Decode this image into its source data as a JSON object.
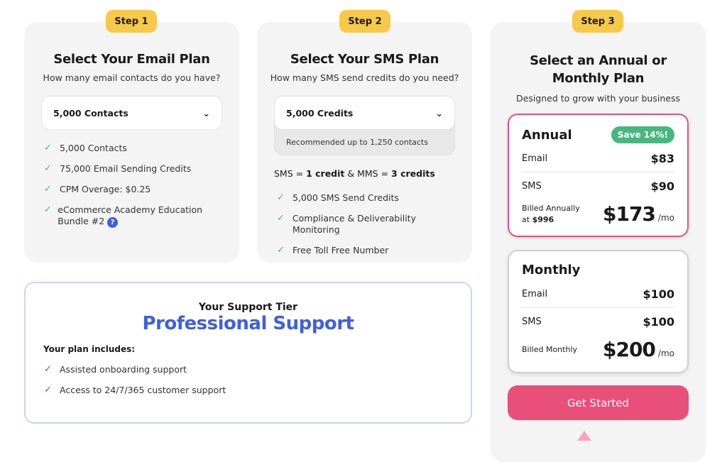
{
  "steps": [
    "Step 1",
    "Step 2",
    "Step 3"
  ],
  "email": {
    "title": "Select Your Email Plan",
    "subtitle": "How many email contacts do you have?",
    "selected": "5,000 Contacts",
    "features": [
      "5,000 Contacts",
      "75,000 Email Sending Credits",
      "CPM Overage: $0.25",
      "eCommerce Academy Education Bundle #2"
    ]
  },
  "sms": {
    "title": "Select Your SMS Plan",
    "subtitle": "How many SMS send credits do you need?",
    "selected": "5,000 Credits",
    "recommended": "Recommended up to 1,250 contacts",
    "ratio": {
      "sms": "SMS = ",
      "sms_val": "1 credit",
      "mms": " & MMS = ",
      "mms_val": "3 credits"
    },
    "features": [
      "5,000 SMS Send Credits",
      "Compliance & Deliverability Monitoring",
      "Free Toll Free Number"
    ]
  },
  "billing": {
    "title": "Select an Annual or Monthly Plan",
    "subtitle": "Designed to grow with your business",
    "annual": {
      "label": "Annual",
      "badge": "Save 14%!",
      "email_label": "Email",
      "email": "$83",
      "sms_label": "SMS",
      "sms": "$90",
      "billed": "Billed Annually",
      "billed_at": "at ",
      "billed_amount": "$996",
      "total": "$173",
      "per": "/mo"
    },
    "monthly": {
      "label": "Monthly",
      "email_label": "Email",
      "email": "$100",
      "sms_label": "SMS",
      "sms": "$100",
      "billed": "Billed Monthly",
      "total": "$200",
      "per": "/mo"
    },
    "cta": "Get Started"
  },
  "support": {
    "heading": "Your Support Tier",
    "tier": "Professional Support",
    "includes": "Your plan includes:",
    "items": [
      "Assisted onboarding support",
      "Access to 24/7/365 customer support"
    ]
  },
  "colors": {
    "accent": "#e94f7b",
    "badge": "#f7c948",
    "check": "#48b77f",
    "support": "#3f5fe0"
  }
}
